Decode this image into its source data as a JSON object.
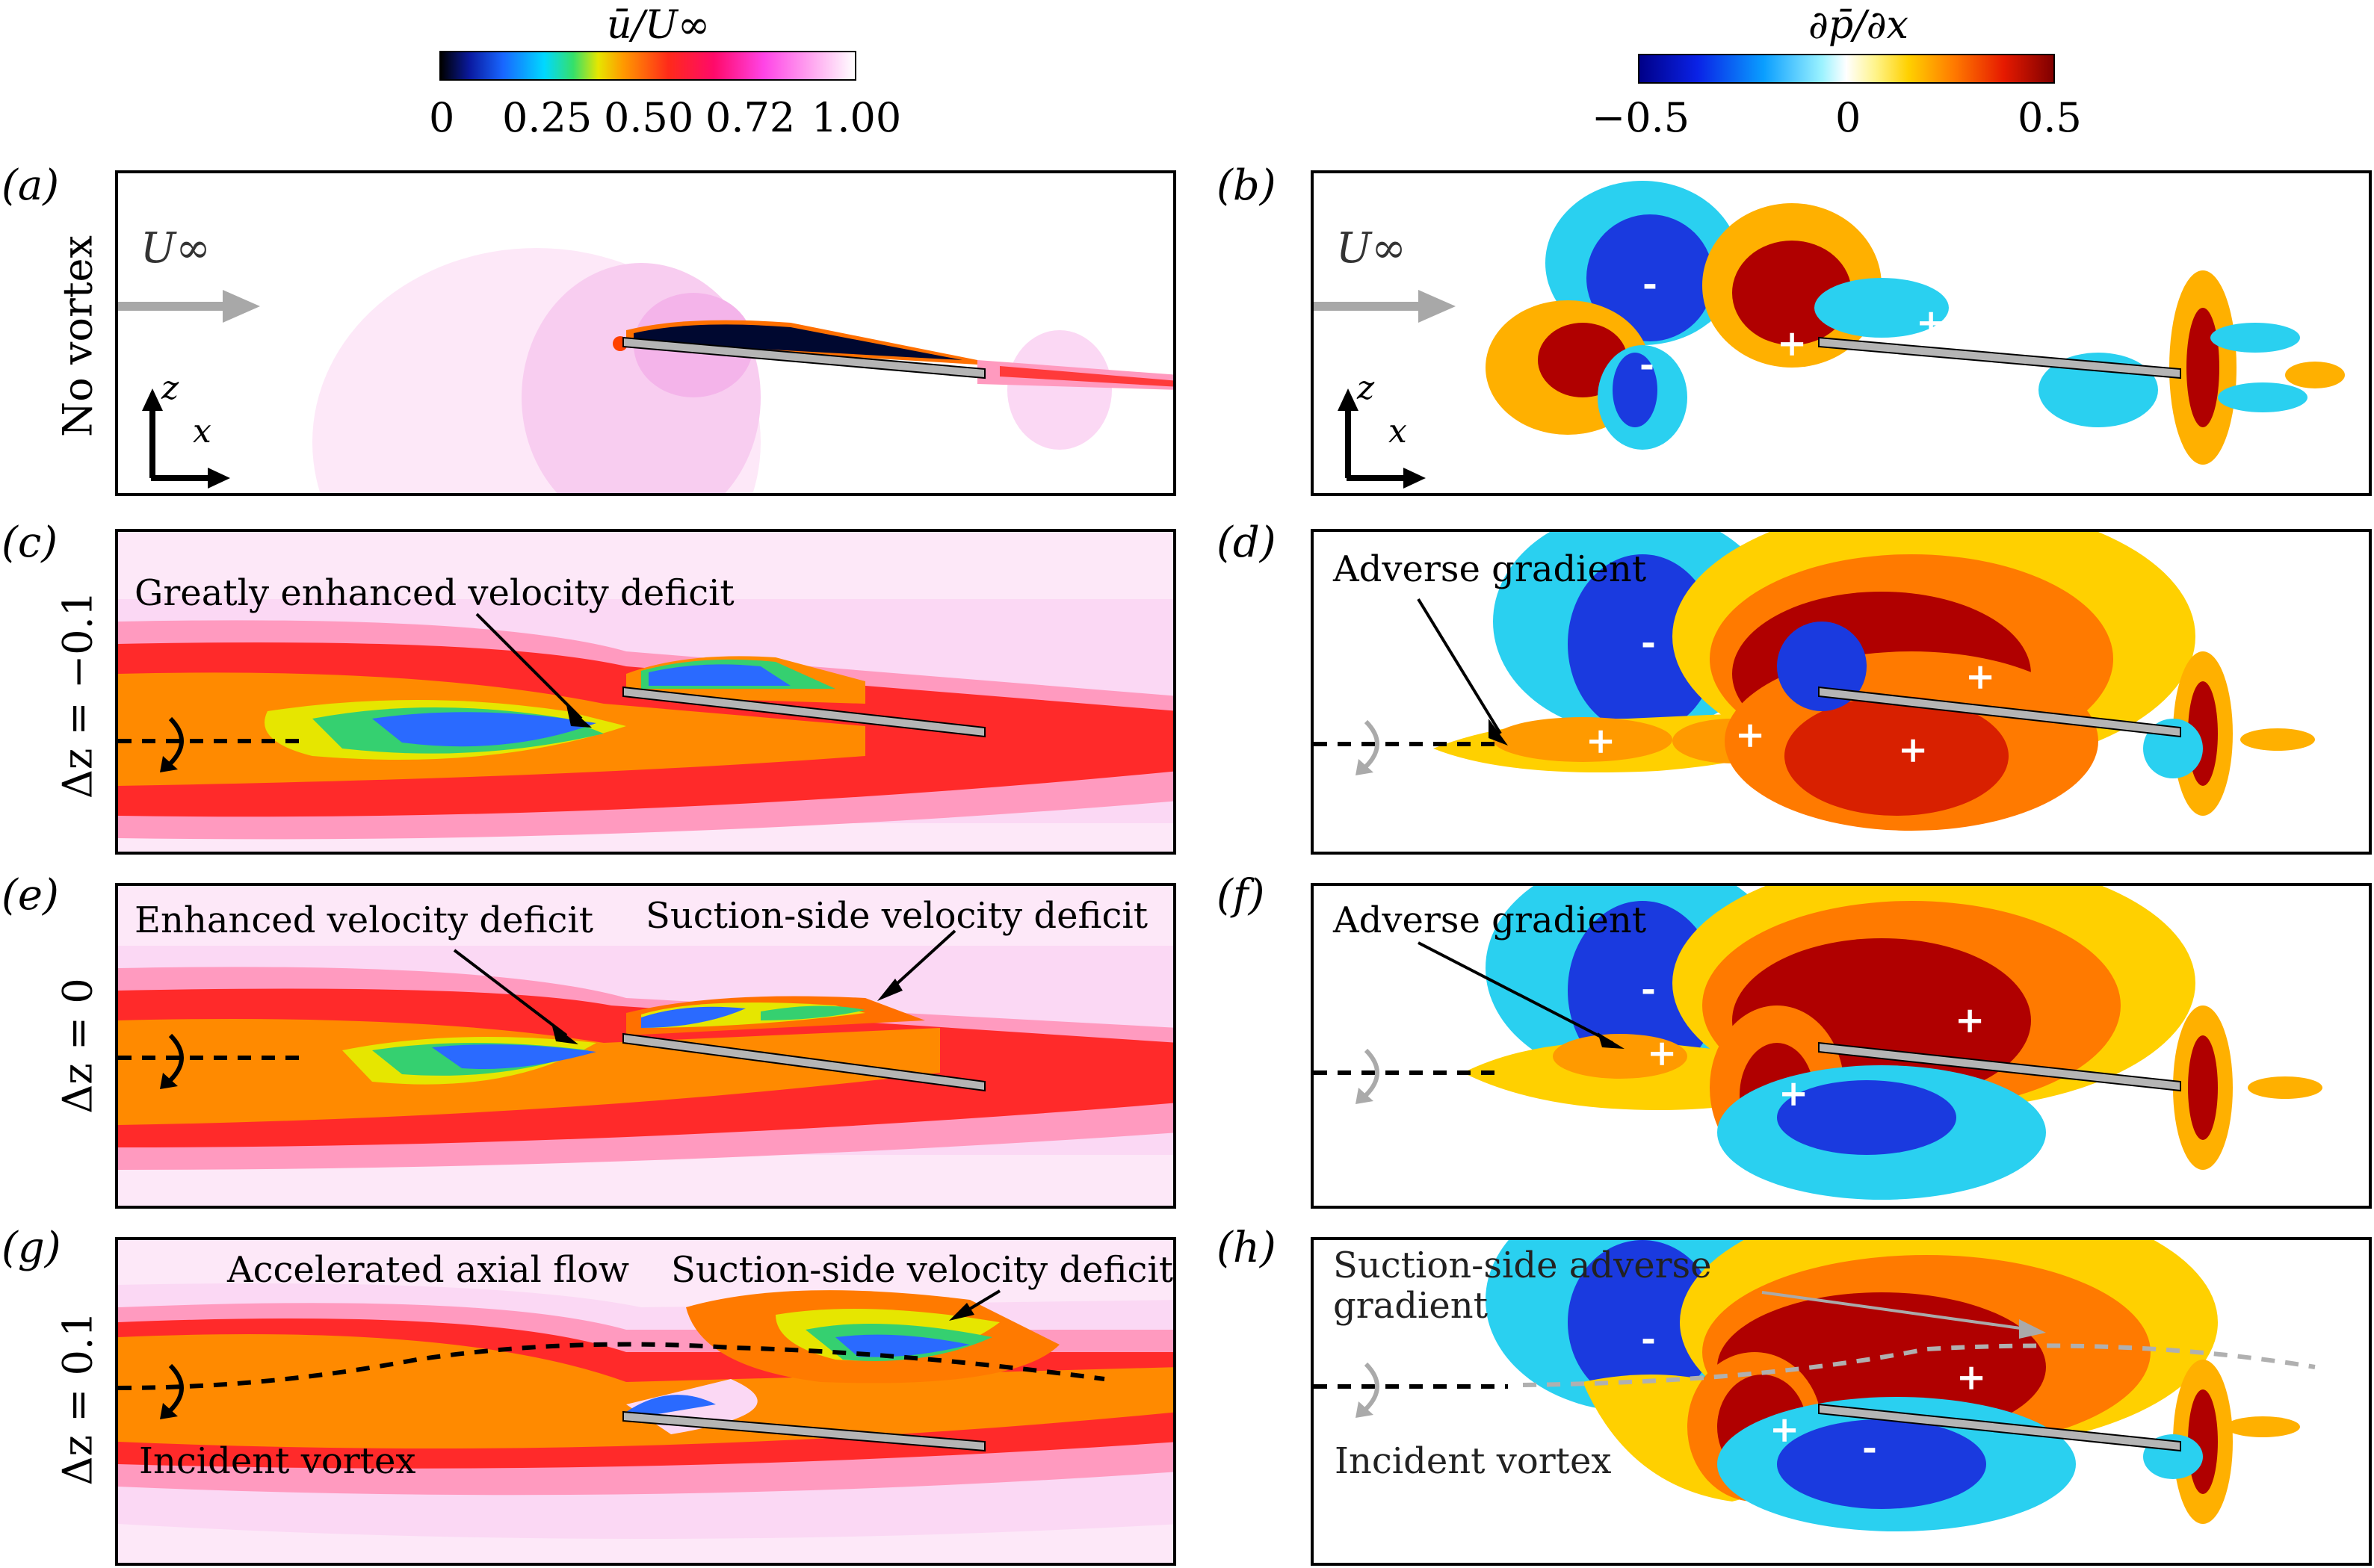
{
  "colorbars": {
    "velocity": {
      "label": "ū/U∞",
      "ticks": [
        "0",
        "0.25",
        "0.50",
        "0.72",
        "1.00"
      ]
    },
    "pressure": {
      "label": "∂p̄/∂x",
      "ticks": [
        "−0.5",
        "0",
        "0.5"
      ]
    }
  },
  "panels": {
    "a": {
      "label": "(a)",
      "freestream": "U∞",
      "axis_x": "x",
      "axis_z": "z"
    },
    "b": {
      "label": "(b)",
      "freestream": "U∞",
      "axis_x": "x",
      "axis_z": "z",
      "signs": [
        "-",
        "+",
        "+",
        "-"
      ]
    },
    "c": {
      "label": "(c)",
      "annotation": "Greatly enhanced velocity deficit"
    },
    "d": {
      "label": "(d)",
      "annotation": "Adverse gradient",
      "signs": [
        "-",
        "+",
        "+",
        "+",
        "+"
      ]
    },
    "e": {
      "label": "(e)",
      "annotation_left": "Enhanced velocity deficit",
      "annotation_right": "Suction-side velocity deficit"
    },
    "f": {
      "label": "(f)",
      "annotation": "Adverse gradient",
      "signs": [
        "-",
        "+",
        "+",
        "+"
      ]
    },
    "g": {
      "label": "(g)",
      "annotation_accel": "Accelerated axial flow",
      "annotation_suction": "Suction-side velocity deficit",
      "annotation_vortex": "Incident vortex"
    },
    "h": {
      "label": "(h)",
      "annotation_suction_1": "Suction-side adverse",
      "annotation_suction_2": "gradient",
      "annotation_vortex": "Incident vortex",
      "signs": [
        "-",
        "+",
        "+",
        "-"
      ]
    }
  },
  "rows": {
    "r1": "No vortex",
    "r2": "Δz = −0.1",
    "r3": "Δz = 0",
    "r4": "Δz = 0.1"
  },
  "colors": {
    "vel_free": "#fbd8f4",
    "vel_mid": "#ff2a2a",
    "vel_wake": "#ff8a00",
    "vel_low": "#2a6aff",
    "vel_core": "#35d070",
    "dp_neg": "#1a3adf",
    "dp_neg_light": "#2ad0f0",
    "dp_pos": "#b00000",
    "dp_pos_light": "#ffb000",
    "blade": "#b5b5b5"
  }
}
